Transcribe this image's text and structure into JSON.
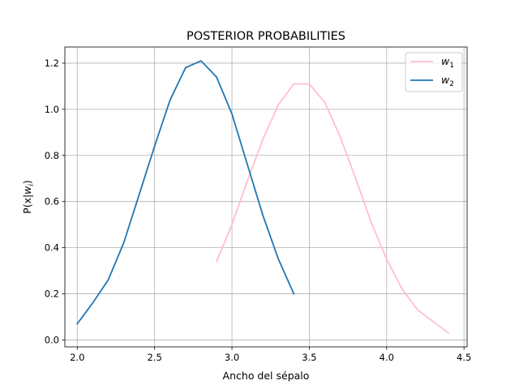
{
  "chart_data": {
    "type": "line",
    "title": "POSTERIOR PROBABILITIES",
    "xlabel": "Ancho del sépalo",
    "ylabel": "P(x|w_i)",
    "xlim": [
      1.92,
      4.52
    ],
    "ylim": [
      -0.03,
      1.27
    ],
    "xticks": [
      2.0,
      2.5,
      3.0,
      3.5,
      4.0,
      4.5
    ],
    "xtick_labels": [
      "2.0",
      "2.5",
      "3.0",
      "3.5",
      "4.0",
      "4.5"
    ],
    "yticks": [
      0.0,
      0.2,
      0.4,
      0.6,
      0.8,
      1.0,
      1.2
    ],
    "ytick_labels": [
      "0.0",
      "0.2",
      "0.4",
      "0.6",
      "0.8",
      "1.0",
      "1.2"
    ],
    "grid": true,
    "legend_position": "top-right",
    "series": [
      {
        "name": "w_1",
        "color": "#ffc0cb",
        "x": [
          2.9,
          3.0,
          3.1,
          3.2,
          3.3,
          3.4,
          3.5,
          3.6,
          3.7,
          3.8,
          3.9,
          4.0,
          4.1,
          4.2,
          4.3,
          4.4
        ],
        "y": [
          0.34,
          0.5,
          0.69,
          0.87,
          1.02,
          1.11,
          1.11,
          1.03,
          0.88,
          0.7,
          0.51,
          0.35,
          0.22,
          0.13,
          0.08,
          0.03
        ]
      },
      {
        "name": "w_2",
        "color": "#1f77b4",
        "x": [
          2.0,
          2.1,
          2.2,
          2.3,
          2.4,
          2.5,
          2.6,
          2.7,
          2.8,
          2.9,
          3.0,
          3.1,
          3.2,
          3.3,
          3.4
        ],
        "y": [
          0.07,
          0.16,
          0.26,
          0.42,
          0.63,
          0.84,
          1.04,
          1.18,
          1.21,
          1.14,
          0.98,
          0.76,
          0.54,
          0.35,
          0.2
        ]
      }
    ]
  }
}
